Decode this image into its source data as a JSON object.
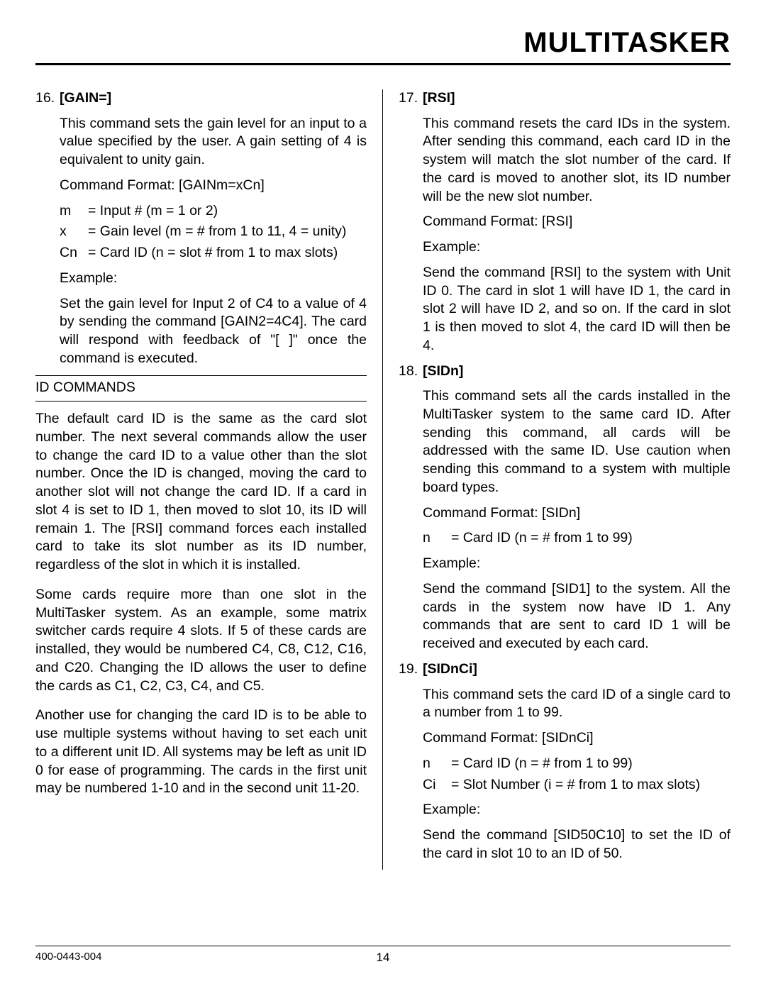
{
  "header": {
    "title": "MULTITASKER"
  },
  "footer": {
    "docnum": "400-0443-004",
    "page": "14"
  },
  "left": {
    "item16": {
      "num": "16.",
      "label": "[GAIN=]",
      "p1": "This command sets the gain level for an input to a value specified by the user. A gain setting of 4 is equivalent to unity gain.",
      "cmdfmt": "Command Format: [GAINm=xCn]",
      "def_m_sym": "m",
      "def_m": "= Input # (m = 1 or 2)",
      "def_x_sym": "x",
      "def_x": "= Gain level (m = # from 1 to 11, 4 = unity)",
      "def_cn_sym": "Cn",
      "def_cn": "= Card ID (n = slot # from 1 to max slots)",
      "example_label": "Example:",
      "example_text": "Set the gain level for Input 2 of C4 to a value of 4 by sending the command [GAIN2=4C4]. The card will respond with feedback of \"[ ]\" once the command is executed."
    },
    "section_heading": "ID COMMANDS",
    "para1": "The default card ID is the same as the card slot number. The next several commands allow the user to change the card ID to a value other than the slot number.  Once the ID is changed, moving the card to another slot will not change the card ID. If a card in slot 4 is set to ID 1, then moved to slot 10, its ID will remain 1. The [RSI] command forces each installed card to take its slot number as its ID number, regardless of the slot in which it is installed.",
    "para2": "Some cards require more than one slot in the MultiTasker system. As an example, some matrix switcher cards require 4 slots. If 5 of these cards are installed, they would be numbered C4, C8, C12, C16, and C20. Changing the ID allows the user to define the cards as C1, C2, C3, C4, and C5.",
    "para3": "Another use for changing the card ID is to be able to use multiple systems without having to set each unit to a different unit ID. All systems may be left as unit ID 0 for ease of programming. The cards in the first unit may be numbered 1-10 and in the second unit 11-20."
  },
  "right": {
    "item17": {
      "num": "17.",
      "label": "[RSI]",
      "p1": "This command resets the card IDs in the system. After sending this command, each card ID in the system will match the slot number of the card. If the card is moved to another slot, its ID number will be the new slot number.",
      "cmdfmt": "Command Format:  [RSI]",
      "example_label": "Example:",
      "example_text": "Send the command [RSI] to the system with Unit ID 0. The card in slot 1 will have ID 1, the card in slot 2 will have ID 2, and so on. If the card in slot 1 is then moved to slot 4, the card ID will then be 4."
    },
    "item18": {
      "num": "18.",
      "label": "[SIDn]",
      "p1": "This command sets all the cards installed in the MultiTasker system to the same card ID. After sending this command, all cards will be addressed with the same ID. Use caution when sending this command to a system with multiple board types.",
      "cmdfmt": "Command Format:  [SIDn]",
      "def_n_sym": "n",
      "def_n": "= Card ID (n = # from 1 to 99)",
      "example_label": "Example:",
      "example_text": "Send the command [SID1] to the system. All the cards in the system now have ID 1. Any commands that are sent to card ID 1 will be received and executed by each card."
    },
    "item19": {
      "num": "19.",
      "label": "[SIDnCi]",
      "p1": "This command sets the card ID of a single card to a number from 1 to 99.",
      "cmdfmt": "Command Format:  [SIDnCi]",
      "def_n_sym": "n",
      "def_n": "= Card ID (n = # from 1 to 99)",
      "def_ci_sym": "Ci",
      "def_ci": "= Slot Number (i = # from 1 to max slots)",
      "example_label": "Example:",
      "example_text": "Send the command [SID50C10] to set the ID of the card in slot 10 to an ID of 50."
    }
  }
}
